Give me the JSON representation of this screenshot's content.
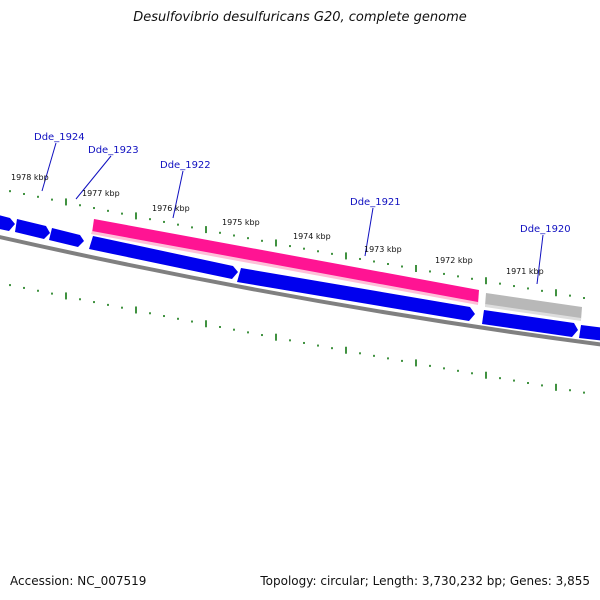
{
  "title": "Desulfovibrio desulfuricans G20, complete genome",
  "footer": {
    "accession": "Accession: NC_007519",
    "summary": "Topology: circular; Length: 3,730,232 bp; Genes: 3,855"
  },
  "colors": {
    "gene": "#0000ee",
    "highlight_gene": "#ff1493",
    "grey_gene": "#b8b8b8",
    "backbone": "#808080",
    "tick": "#117711",
    "label_line": "#1010c0"
  },
  "scale_labels": [
    "1978 kbp",
    "1977 kbp",
    "1976 kbp",
    "1975 kbp",
    "1974 kbp",
    "1973 kbp",
    "1972 kbp",
    "1971 kbp"
  ],
  "gene_labels": [
    "Dde_1924",
    "Dde_1923",
    "Dde_1922",
    "Dde_1921",
    "Dde_1920"
  ]
}
